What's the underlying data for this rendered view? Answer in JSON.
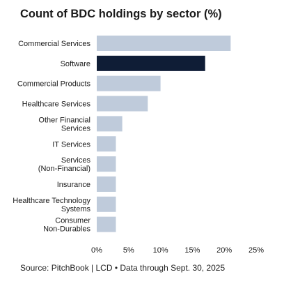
{
  "chart_data": {
    "type": "bar",
    "orientation": "horizontal",
    "title": "Count of BDC holdings by sector (%)",
    "categories": [
      "Commercial Services",
      "Software",
      "Commercial Products",
      "Healthcare Services",
      "Other Financial Services",
      "IT Services",
      "Services (Non-Financial)",
      "Insurance",
      "Healthcare Technology Systems",
      "Consumer Non-Durables"
    ],
    "category_lines": [
      [
        "Commercial Services"
      ],
      [
        "Software"
      ],
      [
        "Commercial Products"
      ],
      [
        "Healthcare Services"
      ],
      [
        "Other Financial",
        "Services"
      ],
      [
        "IT Services"
      ],
      [
        "Services",
        "(Non-Financial)"
      ],
      [
        "Insurance"
      ],
      [
        "Healthcare Technology",
        "Systems"
      ],
      [
        "Consumer",
        "Non-Durables"
      ]
    ],
    "values": [
      21,
      17,
      10,
      8,
      4,
      3,
      3,
      3,
      3,
      3
    ],
    "highlight_index": 1,
    "xlim": [
      0,
      25
    ],
    "xticks": [
      0,
      5,
      10,
      15,
      20,
      25
    ],
    "xtick_labels": [
      "0%",
      "5%",
      "10%",
      "15%",
      "20%",
      "25%"
    ],
    "grid": false,
    "xlabel": "",
    "ylabel": "",
    "colors": {
      "bar": "#bfcbdb",
      "highlight": "#0f1d36"
    }
  },
  "source": "Source: PitchBook | LCD • Data through Sept. 30, 2025"
}
